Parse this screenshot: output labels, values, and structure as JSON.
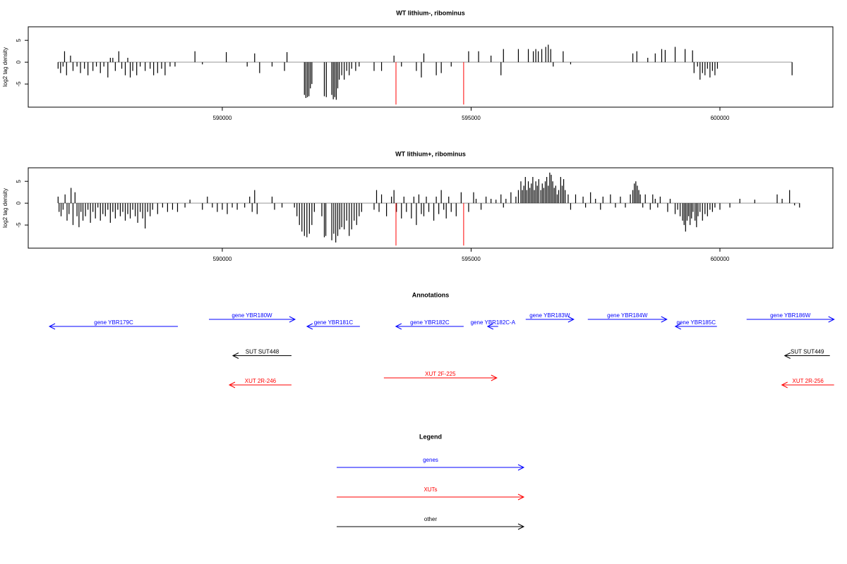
{
  "chart_data": [
    {
      "type": "bar",
      "title": "WT lithium-, ribominus",
      "ylabel": "log2 tag density",
      "color": "#000000",
      "xlim": [
        586100,
        602270
      ],
      "ylim": [
        -10.3,
        8.1
      ],
      "xticks": [
        590000,
        595000,
        600000
      ],
      "yticks": [
        -5,
        0,
        5
      ],
      "x": [
        586700,
        586750,
        586800,
        586830,
        586870,
        586950,
        587000,
        587080,
        587150,
        587230,
        587300,
        587400,
        587470,
        587550,
        587620,
        587700,
        587750,
        587800,
        587850,
        587920,
        587980,
        588050,
        588100,
        588150,
        588200,
        588280,
        588350,
        588450,
        588550,
        588620,
        588700,
        588780,
        588850,
        588950,
        589050,
        589450,
        589600,
        590080,
        590500,
        590650,
        590750,
        591000,
        591250,
        591300,
        591650,
        591680,
        591710,
        591740,
        591770,
        591800,
        592050,
        592090,
        592200,
        592230,
        592260,
        592290,
        592320,
        592350,
        592400,
        592450,
        592500,
        592550,
        592600,
        592680,
        592750,
        593050,
        593200,
        593450,
        593600,
        593900,
        594000,
        594050,
        594300,
        594400,
        594600,
        594950,
        595150,
        595400,
        595600,
        595650,
        595950,
        596150,
        596250,
        596300,
        596350,
        596420,
        596500,
        596550,
        596600,
        596650,
        596850,
        597000,
        598250,
        598330,
        598550,
        598700,
        598830,
        598900,
        599100,
        599300,
        599450,
        599480,
        599550,
        599600,
        599650,
        599700,
        599750,
        599800,
        599850,
        599900,
        599950,
        601450
      ],
      "values": [
        -1.5,
        -2.5,
        -1,
        2.5,
        -3,
        1.5,
        -2,
        -1,
        -2.5,
        -1.5,
        -3,
        -2,
        -1,
        -2.5,
        -1,
        -3.5,
        1,
        1,
        -2,
        2.5,
        -1.5,
        -3,
        1,
        -3.5,
        -2,
        -3,
        -1,
        -2,
        -1.5,
        -3,
        -2.5,
        -1.5,
        -3,
        -1,
        -1,
        2.5,
        -0.5,
        2.3,
        -1,
        2,
        -2.5,
        -1,
        -2,
        2.3,
        -7.5,
        -8.2,
        -8,
        -7.8,
        -6,
        -5,
        -7.8,
        -8,
        -7.5,
        -8.5,
        -8,
        -8.6,
        -6,
        -4,
        -3,
        -4,
        -2,
        -3,
        -1.5,
        -2,
        -1,
        -2,
        -2,
        1.5,
        -1,
        -2,
        -3.5,
        2,
        -3,
        -2.5,
        -1,
        2.5,
        2.5,
        1.5,
        -3,
        3,
        3,
        3,
        2.5,
        3,
        2.5,
        3,
        3.5,
        4,
        3,
        -1,
        2.5,
        -0.5,
        2,
        2.5,
        1,
        2,
        3,
        2.8,
        3.5,
        3,
        2.7,
        -2.5,
        -1,
        -4,
        -2.5,
        -3,
        -1.5,
        -3.5,
        -2,
        -3,
        -1.5,
        -3
      ],
      "highlight": {
        "color": "#ff0000",
        "x": [
          593490,
          594850
        ],
        "values": [
          -9.7,
          -9.7
        ]
      }
    },
    {
      "type": "bar",
      "title": "WT lithium+, ribominus",
      "ylabel": "log2 tag density",
      "color": "#000000",
      "xlim": [
        586100,
        602270
      ],
      "ylim": [
        -10.3,
        8.1
      ],
      "xticks": [
        590000,
        595000,
        600000
      ],
      "yticks": [
        -5,
        0,
        5
      ],
      "x": [
        586700,
        586720,
        586760,
        586800,
        586840,
        586880,
        586920,
        586960,
        587000,
        587040,
        587080,
        587120,
        587160,
        587200,
        587250,
        587300,
        587350,
        587400,
        587450,
        587500,
        587550,
        587600,
        587650,
        587700,
        587750,
        587800,
        587850,
        587900,
        587950,
        588000,
        588050,
        588100,
        588150,
        588200,
        588250,
        588300,
        588350,
        588400,
        588450,
        588500,
        588550,
        588600,
        588700,
        588800,
        588900,
        589000,
        589100,
        589250,
        589350,
        589600,
        589700,
        589800,
        589900,
        590000,
        590100,
        590200,
        590300,
        590450,
        590550,
        590600,
        590650,
        590700,
        591000,
        591050,
        591200,
        591450,
        591500,
        591550,
        591600,
        591650,
        591700,
        591750,
        591800,
        591850,
        592000,
        592050,
        592080,
        592200,
        592240,
        592280,
        592320,
        592360,
        592400,
        592450,
        592500,
        592550,
        592600,
        592650,
        592700,
        592750,
        592800,
        593050,
        593100,
        593150,
        593200,
        593300,
        593400,
        593450,
        593500,
        593600,
        593650,
        593700,
        593800,
        593850,
        593900,
        593950,
        594000,
        594050,
        594100,
        594150,
        594250,
        594300,
        594350,
        594400,
        594450,
        594500,
        594550,
        594600,
        594700,
        594800,
        594950,
        595050,
        595100,
        595200,
        595300,
        595400,
        595500,
        595600,
        595650,
        595700,
        595800,
        595900,
        595950,
        596000,
        596030,
        596060,
        596090,
        596120,
        596150,
        596180,
        596210,
        596240,
        596270,
        596300,
        596330,
        596360,
        596400,
        596430,
        596460,
        596490,
        596520,
        596550,
        596580,
        596610,
        596640,
        596670,
        596700,
        596730,
        596760,
        596800,
        596830,
        596860,
        596890,
        596950,
        597000,
        597100,
        597250,
        597300,
        597400,
        597500,
        597600,
        597650,
        597800,
        597900,
        598000,
        598100,
        598200,
        598250,
        598280,
        598310,
        598340,
        598370,
        598400,
        598450,
        598500,
        598600,
        598650,
        598700,
        598750,
        598800,
        598950,
        599000,
        599100,
        599150,
        599200,
        599250,
        599280,
        599310,
        599340,
        599370,
        599400,
        599430,
        599460,
        599500,
        599530,
        599560,
        599600,
        599650,
        599700,
        599750,
        599800,
        599850,
        599900,
        600000,
        600200,
        600400,
        600700,
        601150,
        601250,
        601400,
        601500,
        601600
      ],
      "values": [
        1.5,
        -2,
        -3,
        -1.5,
        2,
        -4,
        -2.5,
        3.5,
        -5,
        2.5,
        -3,
        -5.5,
        -2,
        -4,
        -3,
        -1.5,
        -4.5,
        -2,
        -3.5,
        -1,
        -4,
        -2.5,
        -3,
        -1.5,
        -4.5,
        -2,
        -3.5,
        -1.5,
        -3,
        -2,
        -4,
        -2.5,
        -3.5,
        -1.5,
        -3,
        -4.5,
        -2,
        -3.5,
        -5.8,
        -2,
        -3,
        -1.5,
        -2.5,
        -1,
        -2,
        -1.5,
        -2,
        -1,
        0.8,
        -1.5,
        1.5,
        -1,
        -2,
        -1.5,
        -2.5,
        -1,
        -1.5,
        -1,
        1.5,
        -2,
        3,
        -2.5,
        1.5,
        -1.5,
        -1,
        -1,
        -3,
        -5,
        -6.5,
        -7.5,
        -7.8,
        -7,
        -5,
        -2,
        -3,
        -7.8,
        -7.5,
        -8.5,
        -7,
        -9,
        -7.5,
        -6,
        -5.5,
        -6,
        -4,
        -7.5,
        -6,
        -4,
        -5,
        -3,
        -2,
        -1.5,
        3,
        -2,
        2,
        -3,
        1.5,
        3,
        -2,
        -3.5,
        1.5,
        -2,
        -3.5,
        1.5,
        -5,
        2,
        -2.5,
        -3,
        1.5,
        -2,
        -4,
        1.5,
        -2.5,
        3,
        -1.5,
        -3.5,
        1.5,
        -2,
        -3,
        2.5,
        -2,
        2.5,
        1,
        -1.5,
        1.5,
        1,
        0.8,
        2,
        -1,
        1,
        2.5,
        1.5,
        3,
        5,
        3,
        4,
        6,
        3,
        5,
        3.5,
        4.5,
        6,
        3,
        5,
        4,
        5.5,
        3,
        4.5,
        3.5,
        5,
        6,
        4,
        7,
        6.5,
        5,
        3.5,
        4,
        2,
        3,
        6,
        4,
        5.5,
        3,
        2,
        -1.5,
        2,
        1.5,
        -1,
        2.5,
        1,
        -1.5,
        1.5,
        2,
        -1,
        1.5,
        -1,
        2,
        3,
        4.5,
        5,
        4,
        3,
        2,
        -1,
        2,
        -1.5,
        2,
        1,
        -1,
        1.5,
        -2,
        1,
        -2.5,
        -1.5,
        -3,
        -4,
        -5,
        -6.5,
        -4,
        -3,
        -5,
        -3.5,
        -2,
        -4,
        -5.5,
        -3,
        -2,
        -4,
        -2.5,
        -3,
        -1.5,
        -2,
        -1,
        -1.5,
        -1,
        1,
        0.8,
        2,
        1,
        3,
        -0.5,
        -1
      ],
      "highlight": {
        "color": "#ff0000",
        "x": [
          593490,
          594850
        ],
        "values": [
          -9.7,
          -9.7
        ]
      }
    }
  ],
  "annotations": {
    "title": "Annotations",
    "tracks": [
      {
        "color": "#0000ff",
        "features": [
          {
            "label": "gene YBR179C",
            "start": 589107,
            "end": 586526
          },
          {
            "label": "gene YBR180W",
            "start": 589731,
            "end": 591461
          },
          {
            "label": "gene YBR181C",
            "start": 592765,
            "end": 591702
          },
          {
            "label": "gene YBR182C",
            "start": 594850,
            "end": 593488
          },
          {
            "label": "gene YBR182C-A",
            "start": 595544,
            "end": 595332
          },
          {
            "label": "gene YBR183W",
            "start": 596097,
            "end": 597062
          },
          {
            "label": "gene YBR184W",
            "start": 597345,
            "end": 598933
          },
          {
            "label": "gene YBR185C",
            "start": 599940,
            "end": 599104
          },
          {
            "label": "gene YBR186W",
            "start": 600536,
            "end": 602294
          }
        ]
      },
      {
        "color": "#000000",
        "features": [
          {
            "label": "SUT SUT448",
            "start": 591390,
            "end": 590213
          },
          {
            "label": "SUT SUT449",
            "start": 602209,
            "end": 601302
          }
        ]
      },
      {
        "color": "#ff0000",
        "features": [
          {
            "label": "XUT 2R-246",
            "start": 591390,
            "end": 590142
          },
          {
            "label": "XUT 2F-225",
            "start": 593247,
            "end": 595516
          },
          {
            "label": "XUT 2R-256",
            "start": 602294,
            "end": 601245
          }
        ]
      }
    ]
  },
  "legend": {
    "title": "Legend",
    "entries": [
      {
        "label": "genes",
        "color": "#0000ff"
      },
      {
        "label": "XUTs",
        "color": "#ff0000"
      },
      {
        "label": "other",
        "color": "#000000"
      }
    ]
  }
}
